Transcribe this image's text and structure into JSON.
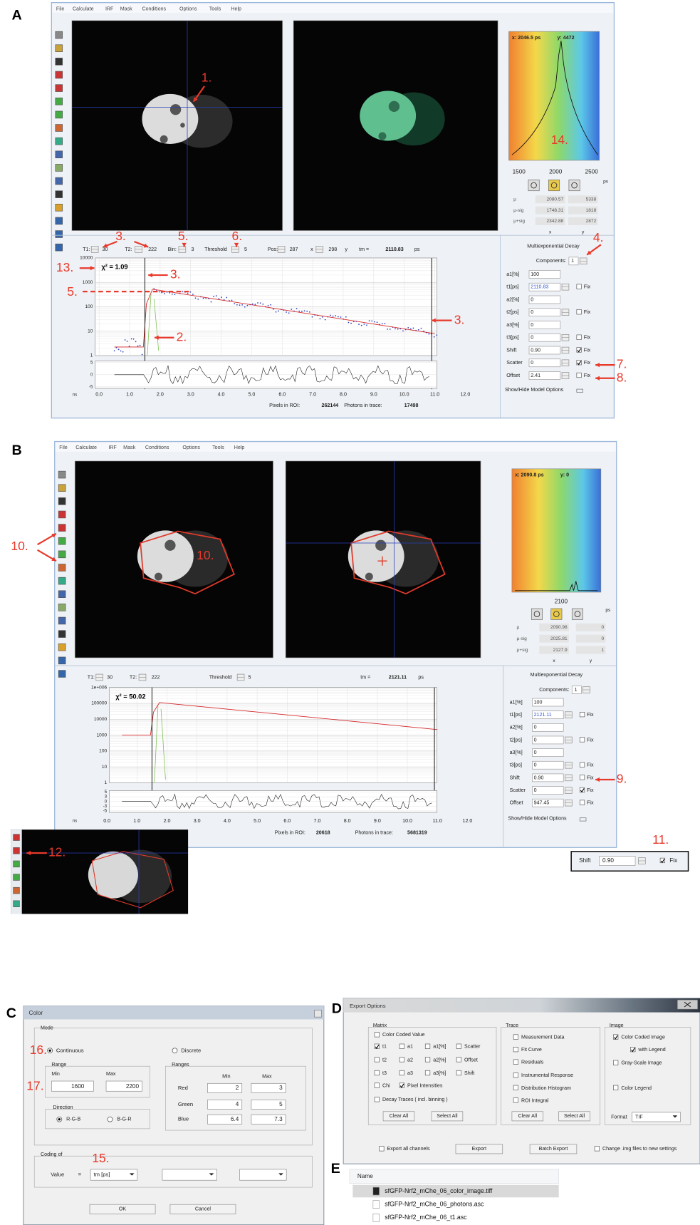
{
  "figure_labels": [
    "A",
    "B",
    "C",
    "D",
    "E"
  ],
  "menu": [
    "File",
    "Calculate",
    "IRF",
    "Mask",
    "Conditions",
    "Options",
    "Tools",
    "Help"
  ],
  "panel_a": {
    "cursor_x": "x: 2046.5 ps",
    "cursor_y": "y: 4472",
    "hist_ticks": [
      "1500",
      "2000",
      "2500"
    ],
    "hist_unit": "ps",
    "stats": [
      [
        "μ",
        "2080.57",
        "5338"
      ],
      [
        "μ-sig",
        "1748.31",
        "1818"
      ],
      [
        "μ+sig",
        "2342.88",
        "2872"
      ]
    ],
    "stats_cols": [
      "x",
      "y"
    ],
    "controls": [
      "T1:",
      "30",
      "T2:",
      "222",
      "Bin:",
      "3",
      "Threshold",
      "5",
      "Pos:",
      "287",
      "x",
      "298",
      "y",
      "tm =",
      "2110.83",
      "ps"
    ],
    "chi": "χ² = 1.09",
    "yticks": [
      "10000",
      "1000",
      "100",
      "10",
      "1"
    ],
    "res_ticks": [
      "5",
      "0",
      "-5"
    ],
    "xticks": [
      "0.0",
      "1.0",
      "2.0",
      "3.0",
      "4.0",
      "5.0",
      "6.0",
      "7.0",
      "8.0",
      "9.0",
      "10.0",
      "11.0",
      "12.0"
    ],
    "x_unit": "ns",
    "footer": [
      "Pixels in ROI:",
      "262144",
      "Photons in trace:",
      "17498"
    ],
    "fit_title": "Multiexponential Decay",
    "components_label": "Components:",
    "components": "1",
    "params": [
      {
        "label": "a1[%]",
        "value": "100"
      },
      {
        "label": "t1[ps]",
        "value": "2110.83",
        "fix": "Fix",
        "checked": false
      },
      {
        "label": "a2[%]",
        "value": "0"
      },
      {
        "label": "t2[ps]",
        "value": "0",
        "fix": "Fix",
        "checked": false
      },
      {
        "label": "a3[%]",
        "value": "0"
      },
      {
        "label": "t3[ps]",
        "value": "0",
        "fix": "Fix",
        "checked": false
      },
      {
        "label": "Shift",
        "value": "0.90",
        "fix": "Fix",
        "checked": true
      },
      {
        "label": "Scatter",
        "value": "0",
        "fix": "Fix",
        "checked": true
      },
      {
        "label": "Offset",
        "value": "2.41",
        "fix": "Fix",
        "checked": false
      }
    ],
    "show_hide": "Show/Hide Model Options",
    "annotations": [
      "1.",
      "3.",
      "5.",
      "6.",
      "4.",
      "13.",
      "3.",
      "5.",
      "2.",
      "3.",
      "14.",
      "7.",
      "8."
    ]
  },
  "panel_b": {
    "cursor_x": "x: 2090.8 ps",
    "cursor_y": "y: 0",
    "hist_ticks": [
      "2100"
    ],
    "hist_unit": "ps",
    "stats": [
      [
        "μ",
        "2090.98",
        "0"
      ],
      [
        "μ-sig",
        "2025.81",
        "0"
      ],
      [
        "μ+sig",
        "2127.9",
        "1"
      ]
    ],
    "stats_cols": [
      "x",
      "y"
    ],
    "controls": [
      "T1:",
      "30",
      "T2:",
      "222",
      "Threshold",
      "5",
      "tm =",
      "2121.11",
      "ps"
    ],
    "chi": "χ² = 50.02",
    "yticks": [
      "1e+006",
      "100000",
      "10000",
      "1000",
      "100",
      "10",
      "1"
    ],
    "res_ticks": [
      "5",
      "3",
      "0",
      "-3",
      "-5"
    ],
    "xticks": [
      "0.0",
      "1.0",
      "2.0",
      "3.0",
      "4.0",
      "5.0",
      "6.0",
      "7.0",
      "8.0",
      "9.0",
      "10.0",
      "11.0",
      "12.0"
    ],
    "x_unit": "ns",
    "footer": [
      "Pixels in ROI:",
      "20618",
      "Photons in trace:",
      "5681319"
    ],
    "fit_title": "Multiexponential Decay",
    "components_label": "Components:",
    "components": "1",
    "params": [
      {
        "label": "a1[%]",
        "value": "100"
      },
      {
        "label": "t1[ps]",
        "value": "2121.11",
        "fix": "Fix",
        "checked": false
      },
      {
        "label": "a2[%]",
        "value": "0"
      },
      {
        "label": "t2[ps]",
        "value": "0",
        "fix": "Fix",
        "checked": false
      },
      {
        "label": "a3[%]",
        "value": "0"
      },
      {
        "label": "t3[ps]",
        "value": "0",
        "fix": "Fix",
        "checked": false
      },
      {
        "label": "Shift",
        "value": "0.90",
        "fix": "Fix",
        "checked": false
      },
      {
        "label": "Scatter",
        "value": "0",
        "fix": "Fix",
        "checked": true
      },
      {
        "label": "Offset",
        "value": "947.45",
        "fix": "Fix",
        "checked": false
      }
    ],
    "show_hide": "Show/Hide Model Options",
    "annotations": [
      "10.",
      "10.",
      "9."
    ]
  },
  "inset": {
    "annotation": "12."
  },
  "shift_box": {
    "label": "Shift",
    "value": "0.90",
    "fix": "Fix",
    "annotation": "11."
  },
  "color_dialog": {
    "title": "Color",
    "mode": "Mode",
    "continuous": "Continuous",
    "discrete": "Discrete",
    "range": "Range",
    "min": "Min",
    "max": "Max",
    "range_min": "1600",
    "range_max": "2200",
    "direction": "Direction",
    "rgb": "R-G-B",
    "bgr": "B-G-R",
    "ranges": "Ranges",
    "ranges_cols": [
      "Min",
      "Max"
    ],
    "rows": [
      [
        "Red",
        "2",
        "3"
      ],
      [
        "Green",
        "4",
        "5"
      ],
      [
        "Blue",
        "6.4",
        "7.3"
      ]
    ],
    "coding": "Coding of",
    "value": "Value",
    "eq": "=",
    "value_sel": "tm [ps]",
    "ok": "OK",
    "cancel": "Cancel",
    "annotations": [
      "16.",
      "17.",
      "15."
    ]
  },
  "export_options": {
    "title": "Export Options",
    "matrix": "Matrix",
    "matrix_items": [
      {
        "label": "Color Coded Value",
        "checked": false
      },
      {
        "label": "t1",
        "checked": true
      },
      {
        "label": "a1",
        "checked": false
      },
      {
        "label": "a1[%]",
        "checked": false
      },
      {
        "label": "Scatter",
        "checked": false
      },
      {
        "label": "t2",
        "checked": false
      },
      {
        "label": "a2",
        "checked": false
      },
      {
        "label": "a2[%]",
        "checked": false
      },
      {
        "label": "Offset",
        "checked": false
      },
      {
        "label": "t3",
        "checked": false
      },
      {
        "label": "a3",
        "checked": false
      },
      {
        "label": "a3[%]",
        "checked": false
      },
      {
        "label": "Shift",
        "checked": false
      },
      {
        "label": "Chi",
        "checked": false
      },
      {
        "label": "Pixel Intensities",
        "checked": true
      },
      {
        "label": "Decay Traces ( incl. binning )",
        "checked": false
      }
    ],
    "matrix_buttons": [
      "Clear All",
      "Select All"
    ],
    "trace": "Trace",
    "trace_items": [
      {
        "label": "Measurement Data",
        "checked": false
      },
      {
        "label": "Fit Curve",
        "checked": false
      },
      {
        "label": "Residuals",
        "checked": false
      },
      {
        "label": "Instrumental Response",
        "checked": false
      },
      {
        "label": "Distribution Histogram",
        "checked": false
      },
      {
        "label": "ROI Integral",
        "checked": false
      }
    ],
    "trace_buttons": [
      "Clear All",
      "Select All"
    ],
    "image": "Image",
    "image_items": [
      {
        "label": "Color Coded Image",
        "checked": true
      },
      {
        "label": "with Legend",
        "checked": true
      },
      {
        "label": "Gray-Scale Image",
        "checked": false
      },
      {
        "label": "Color Legend",
        "checked": false
      }
    ],
    "format_label": "Format",
    "format": "TIF",
    "export_all": "Export all channels",
    "export": "Export",
    "batch_export": "Batch Export",
    "change_files": "Change .img files to new settings"
  },
  "file_list": {
    "header": "Name",
    "files": [
      "sfGFP-Nrf2_mChe_06_color_image.tiff",
      "sfGFP-Nrf2_mChe_06_photons.asc",
      "sfGFP-Nrf2_mChe_06_t1.asc"
    ]
  }
}
